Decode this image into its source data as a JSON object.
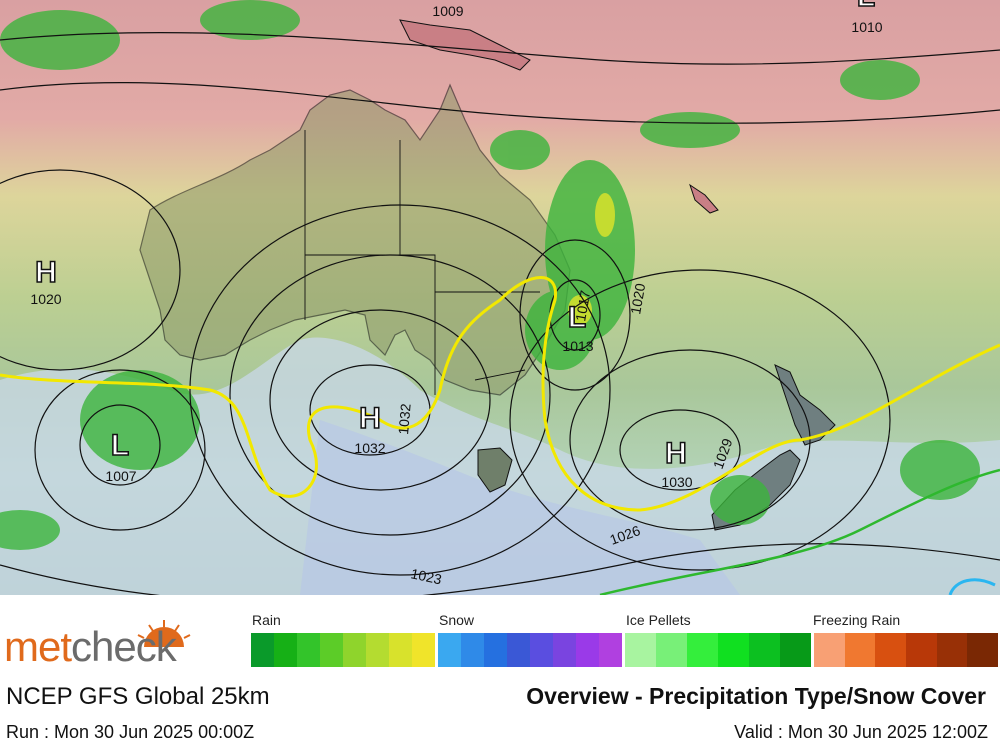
{
  "map": {
    "pressure_systems": [
      {
        "type": "H",
        "value": "1020"
      },
      {
        "type": "L",
        "value": "1007"
      },
      {
        "type": "H",
        "value": "1032"
      },
      {
        "type": "L",
        "value": "1013"
      },
      {
        "type": "H",
        "value": "1030"
      },
      {
        "type": "",
        "value": "1009"
      },
      {
        "type": "L",
        "value": "1010"
      }
    ],
    "contour_labels": [
      "1023",
      "1026",
      "1029",
      "1020",
      "1017",
      "1032"
    ],
    "colors": {
      "tropics": "#e2aaa6",
      "subtropics": "#ddd59b",
      "mid": "#a9c79a",
      "south": "#b3d3b7",
      "cold": "#c9d8ea",
      "frontal_line": "#f2e800",
      "land_outline": "#111111",
      "rain_green": "#3cb43c"
    }
  },
  "legend": {
    "brand_part1": "met",
    "brand_part2": "check",
    "categories": [
      {
        "label": "Rain",
        "colors": [
          "#0a9a2a",
          "#16b016",
          "#33c42a",
          "#5ccc28",
          "#8fd42c",
          "#b4dc30",
          "#d8e22c",
          "#f0e42a"
        ]
      },
      {
        "label": "Snow",
        "colors": [
          "#3aa8f0",
          "#2f8ae8",
          "#2570e0",
          "#3a58d6",
          "#5a4ee0",
          "#7a44e0",
          "#9a3ae8",
          "#b040e0"
        ]
      },
      {
        "label": "Ice Pellets",
        "colors": [
          "#a8f4a0",
          "#78f078",
          "#34ee3c",
          "#10e020",
          "#0cc020",
          "#079a18"
        ]
      },
      {
        "label": "Freezing Rain",
        "colors": [
          "#f8a074",
          "#f07830",
          "#d85010",
          "#b83808",
          "#983006",
          "#7a2804"
        ]
      }
    ],
    "model": "NCEP GFS Global 25km",
    "title": "Overview - Precipitation Type/Snow Cover",
    "run": "Run : Mon 30 Jun 2025 00:00Z",
    "valid": "Valid : Mon 30 Jun 2025 12:00Z"
  }
}
